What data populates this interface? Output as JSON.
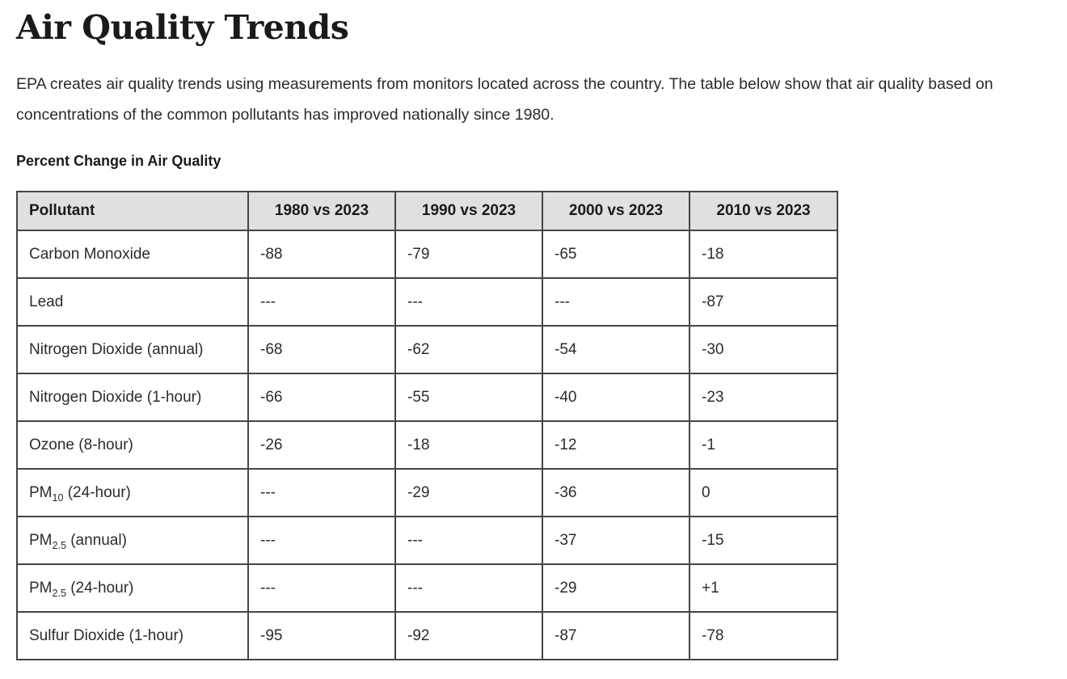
{
  "page": {
    "title": "Air Quality Trends",
    "intro": "EPA creates air quality trends using measurements from monitors located across the country. The table below show that air quality based on concentrations of the common pollutants has improved nationally since 1980.",
    "table_caption": "Percent Change in Air Quality"
  },
  "colors": {
    "header_bg": "#dfe0e1",
    "border": "#454545",
    "text": "#2b2b2b",
    "heading": "#1a1a1a"
  },
  "chart_data": {
    "type": "table",
    "title": "Percent Change in Air Quality",
    "columns": [
      "Pollutant",
      "1980 vs 2023",
      "1990 vs 2023",
      "2000 vs 2023",
      "2010 vs 2023"
    ],
    "rows": [
      {
        "pollutant": {
          "pre": "Carbon Monoxide",
          "sub": "",
          "post": ""
        },
        "values": [
          "-88",
          "-79",
          "-65",
          "-18"
        ]
      },
      {
        "pollutant": {
          "pre": "Lead",
          "sub": "",
          "post": ""
        },
        "values": [
          "---",
          "---",
          "---",
          "-87"
        ]
      },
      {
        "pollutant": {
          "pre": "Nitrogen Dioxide (annual)",
          "sub": "",
          "post": ""
        },
        "values": [
          "-68",
          "-62",
          "-54",
          "-30"
        ]
      },
      {
        "pollutant": {
          "pre": "Nitrogen Dioxide (1-hour)",
          "sub": "",
          "post": ""
        },
        "values": [
          "-66",
          "-55",
          "-40",
          "-23"
        ]
      },
      {
        "pollutant": {
          "pre": "Ozone (8-hour)",
          "sub": "",
          "post": ""
        },
        "values": [
          "-26",
          "-18",
          "-12",
          "-1"
        ]
      },
      {
        "pollutant": {
          "pre": "PM",
          "sub": "10",
          "post": " (24-hour)"
        },
        "values": [
          "---",
          "-29",
          "-36",
          "0"
        ]
      },
      {
        "pollutant": {
          "pre": "PM",
          "sub": "2.5",
          "post": " (annual)"
        },
        "values": [
          "---",
          "---",
          "-37",
          "-15"
        ]
      },
      {
        "pollutant": {
          "pre": "PM",
          "sub": "2.5",
          "post": " (24-hour)"
        },
        "values": [
          "---",
          "---",
          "-29",
          "+1"
        ]
      },
      {
        "pollutant": {
          "pre": "Sulfur Dioxide (1-hour)",
          "sub": "",
          "post": ""
        },
        "values": [
          "-95",
          "-92",
          "-87",
          "-78"
        ]
      }
    ]
  }
}
